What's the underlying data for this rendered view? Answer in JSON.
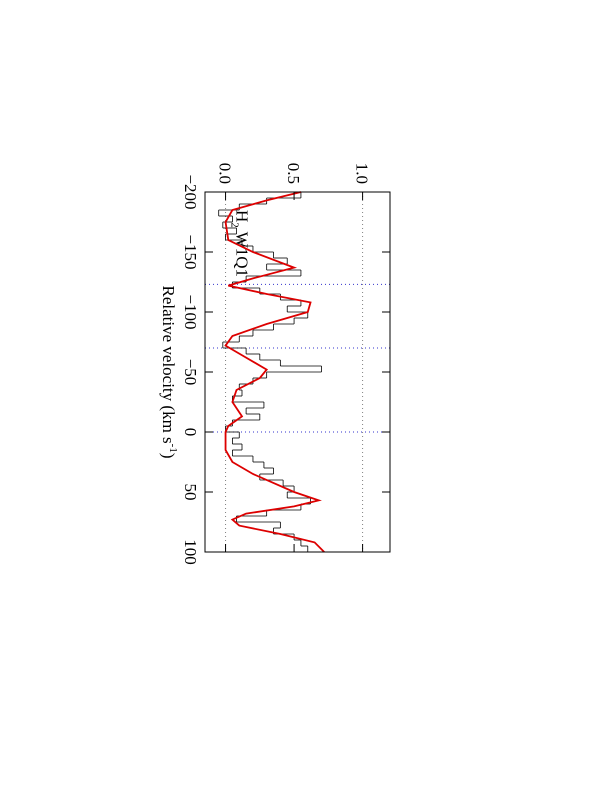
{
  "chart_data": {
    "type": "spectrum",
    "x_label": {
      "text": "Relative velocity (km s",
      "superscript": "-1",
      "suffix": ")"
    },
    "annotation": {
      "text": "H",
      "subscript": "2",
      "suffix": " W1Q1"
    },
    "xlim": [
      -200,
      100
    ],
    "ylim": [
      -0.15,
      1.2
    ],
    "xticks": [
      {
        "value": -200,
        "label": "−200"
      },
      {
        "value": -150,
        "label": "−150"
      },
      {
        "value": -100,
        "label": "−100"
      },
      {
        "value": -50,
        "label": "−50"
      },
      0,
      50,
      100
    ],
    "yticks": [
      {
        "value": 0,
        "label": "0.0"
      },
      0.5,
      {
        "value": 1,
        "label": "1.0"
      }
    ],
    "reference_lines": {
      "y": [
        0,
        1
      ],
      "color": "#808080"
    },
    "component_lines": {
      "x": [
        -123,
        -70,
        0
      ],
      "color": "#3333cc"
    },
    "histogram": {
      "color": "#000000",
      "bins": [
        -200,
        -195,
        -190,
        -185,
        -180,
        -175,
        -170,
        -165,
        -160,
        -155,
        -150,
        -145,
        -140,
        -135,
        -130,
        -125,
        -120,
        -115,
        -110,
        -105,
        -100,
        -95,
        -90,
        -85,
        -80,
        -75,
        -70,
        -65,
        -60,
        -55,
        -50,
        -45,
        -40,
        -35,
        -30,
        -25,
        -20,
        -15,
        -10,
        -5,
        0,
        5,
        10,
        15,
        20,
        25,
        30,
        35,
        40,
        45,
        50,
        55,
        60,
        65,
        70,
        75,
        80,
        85,
        90,
        95,
        100
      ],
      "values": [
        0.55,
        0.3,
        0.1,
        -0.05,
        0.05,
        -0.02,
        0.08,
        0.0,
        0.12,
        0.2,
        0.35,
        0.45,
        0.3,
        0.55,
        0.15,
        0.05,
        0.25,
        0.4,
        0.55,
        0.45,
        0.6,
        0.5,
        0.35,
        0.2,
        0.1,
        -0.02,
        0.15,
        0.25,
        0.4,
        0.7,
        0.3,
        0.2,
        0.1,
        0.12,
        0.05,
        0.28,
        0.15,
        0.25,
        0.05,
        0.0,
        0.1,
        0.05,
        0.12,
        0.05,
        0.2,
        0.28,
        0.35,
        0.25,
        0.42,
        0.5,
        0.45,
        0.62,
        0.55,
        0.3,
        0.08,
        0.4,
        0.35,
        0.5,
        0.55,
        0.6
      ]
    },
    "model": {
      "color": "#dd0000",
      "x": [
        -200,
        -193,
        -185,
        -175,
        -160,
        -150,
        -137,
        -128,
        -122,
        -115,
        -108,
        -100,
        -90,
        -80,
        -72,
        -62,
        -52,
        -45,
        -35,
        -25,
        -13,
        -5,
        0,
        15,
        25,
        35,
        50,
        57,
        62,
        68,
        73,
        78,
        85,
        92,
        100
      ],
      "values": [
        0.55,
        0.3,
        0.05,
        0.0,
        0.02,
        0.2,
        0.5,
        0.2,
        0.02,
        0.3,
        0.62,
        0.6,
        0.3,
        0.05,
        0.0,
        0.15,
        0.3,
        0.25,
        0.08,
        0.05,
        0.12,
        0.02,
        0.0,
        0.0,
        0.05,
        0.2,
        0.5,
        0.68,
        0.5,
        0.15,
        0.05,
        0.1,
        0.4,
        0.65,
        0.72
      ]
    }
  }
}
